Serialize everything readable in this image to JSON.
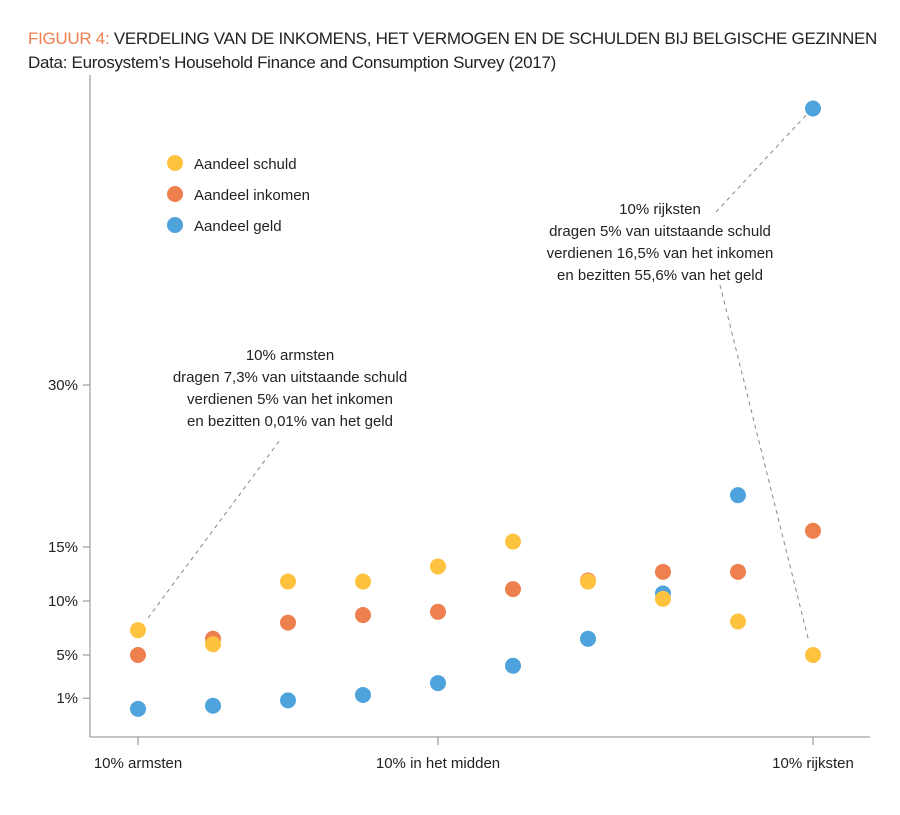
{
  "chart_data": {
    "type": "scatter",
    "title_prefix": "FIGUUR 4:",
    "title": "VERDELING VAN DE INKOMENS, HET VERMOGEN EN DE SCHULDEN BIJ BELGISCHE GEZINNEN",
    "subtitle": "Data: Eurosystem’s Household Finance and Consumption Survey (2017)",
    "x": [
      1,
      2,
      3,
      4,
      5,
      6,
      7,
      8,
      9,
      10
    ],
    "x_tick_labels": [
      {
        "x": 1,
        "label": "10% armsten"
      },
      {
        "x": 5,
        "label": "10% in het midden"
      },
      {
        "x": 10,
        "label": "10% rijksten"
      }
    ],
    "y_ticks": [
      {
        "v": 1,
        "label": "1%"
      },
      {
        "v": 5,
        "label": "5%"
      },
      {
        "v": 10,
        "label": "10%"
      },
      {
        "v": 15,
        "label": "15%"
      },
      {
        "v": 30,
        "label": "30%"
      }
    ],
    "ylim": [
      -1,
      58
    ],
    "legend_placement": "top-left",
    "series": [
      {
        "name": "Aandeel geld",
        "color": "#4fa3dc",
        "values": [
          0.01,
          0.3,
          0.8,
          1.3,
          2.4,
          4.0,
          6.5,
          10.7,
          19.8,
          55.6
        ]
      },
      {
        "name": "Aandeel inkomen",
        "color": "#ee7f4f",
        "values": [
          5,
          6.5,
          8.0,
          8.7,
          9.0,
          11.1,
          11.9,
          12.7,
          12.7,
          16.5
        ]
      },
      {
        "name": "Aandeel schuld",
        "color": "#fdc33f",
        "values": [
          7.3,
          6.0,
          11.8,
          11.8,
          13.2,
          15.5,
          11.8,
          10.2,
          8.1,
          5
        ]
      }
    ],
    "legend_order": [
      "Aandeel schuld",
      "Aandeel inkomen",
      "Aandeel geld"
    ],
    "annotations": [
      {
        "lines": [
          "10% armsten",
          "dragen 7,3% van uitstaande schuld",
          "verdienen 5% van het inkomen",
          "en bezitten 0,01% van het geld"
        ]
      },
      {
        "lines": [
          "10% rijksten",
          "dragen 5% van uitstaande schuld",
          "verdienen 16,5% van het inkomen",
          "en bezitten 55,6% van het geld"
        ]
      }
    ]
  }
}
